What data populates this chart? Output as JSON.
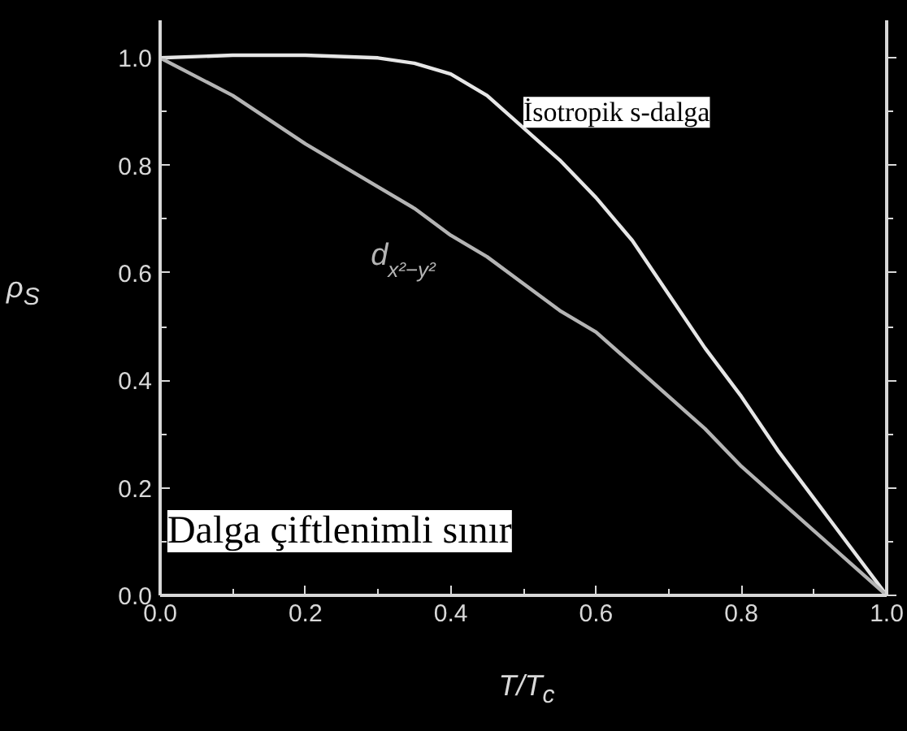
{
  "chart_data": {
    "type": "line",
    "xlabel": "T/T$_{c}$",
    "ylabel": "ρ$_{S}$",
    "x": [
      0,
      0.1,
      0.2,
      0.3,
      0.35,
      0.4,
      0.45,
      0.5,
      0.55,
      0.6,
      0.65,
      0.7,
      0.75,
      0.8,
      0.85,
      0.9,
      0.95,
      1.0
    ],
    "series": [
      {
        "name": "İsotropik s-dalga",
        "color": "#e6e6e6",
        "values": [
          1.0,
          1.005,
          1.005,
          1.0,
          0.99,
          0.97,
          0.93,
          0.87,
          0.81,
          0.74,
          0.66,
          0.56,
          0.46,
          0.37,
          0.27,
          0.18,
          0.09,
          0
        ]
      },
      {
        "name": "d$_{x²−y²}$",
        "color": "#b4b4b4",
        "values": [
          1.0,
          0.93,
          0.84,
          0.76,
          0.72,
          0.67,
          0.63,
          0.58,
          0.53,
          0.49,
          0.43,
          0.37,
          0.31,
          0.24,
          0.18,
          0.12,
          0.06,
          0
        ]
      }
    ],
    "annotations": [
      "Dalga çiftlenimli sınır"
    ],
    "xlim": [
      0,
      1.0
    ],
    "ylim": [
      0,
      1.07
    ],
    "xticks": [
      {
        "value": 0,
        "label": "0.0"
      },
      0.2,
      0.4,
      0.6,
      0.8,
      {
        "value": 1.0,
        "label": "1.0"
      }
    ],
    "yticks": [
      {
        "value": 0,
        "label": "0.0"
      },
      0.2,
      0.4,
      0.6,
      0.8,
      {
        "value": 1.0,
        "label": "1.0"
      }
    ],
    "grid": false,
    "legend": false,
    "marker": "none",
    "line_style": "solid"
  }
}
